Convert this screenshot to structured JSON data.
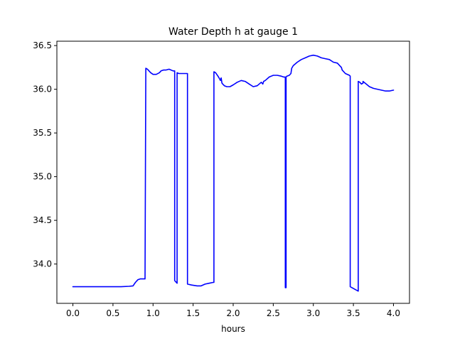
{
  "chart_data": {
    "type": "line",
    "title": "Water Depth h at gauge 1",
    "xlabel": "hours",
    "ylabel": "",
    "xlim": [
      -0.2,
      4.2
    ],
    "ylim": [
      33.55,
      36.55
    ],
    "xticks": [
      0.0,
      0.5,
      1.0,
      1.5,
      2.0,
      2.5,
      3.0,
      3.5,
      4.0
    ],
    "xtick_labels": [
      "0.0",
      "0.5",
      "1.0",
      "1.5",
      "2.0",
      "2.5",
      "3.0",
      "3.5",
      "4.0"
    ],
    "yticks": [
      34.0,
      34.5,
      35.0,
      35.5,
      36.0,
      36.5
    ],
    "ytick_labels": [
      "34.0",
      "34.5",
      "35.0",
      "35.5",
      "36.0",
      "36.5"
    ],
    "grid": false,
    "series": [
      {
        "color": "#0000ff",
        "x": [
          0.0,
          0.2,
          0.4,
          0.6,
          0.7,
          0.75,
          0.78,
          0.81,
          0.84,
          0.87,
          0.9,
          0.91,
          0.93,
          0.97,
          1.0,
          1.04,
          1.08,
          1.1,
          1.13,
          1.16,
          1.2,
          1.25,
          1.27,
          1.27,
          1.3,
          1.3,
          1.3,
          1.32,
          1.43,
          1.43,
          1.43,
          1.48,
          1.55,
          1.6,
          1.65,
          1.7,
          1.75,
          1.76,
          1.76,
          1.78,
          1.81,
          1.83,
          1.84,
          1.85,
          1.86,
          1.87,
          1.89,
          1.92,
          1.96,
          2.0,
          2.05,
          2.1,
          2.15,
          2.2,
          2.25,
          2.3,
          2.35,
          2.37,
          2.38,
          2.4,
          2.45,
          2.5,
          2.55,
          2.6,
          2.63,
          2.65,
          2.65,
          2.66,
          2.66,
          2.67,
          2.7,
          2.72,
          2.73,
          2.75,
          2.8,
          2.85,
          2.9,
          2.95,
          3.0,
          3.05,
          3.1,
          3.15,
          3.2,
          3.25,
          3.3,
          3.35,
          3.36,
          3.4,
          3.45,
          3.46,
          3.46,
          3.5,
          3.56,
          3.56,
          3.58,
          3.6,
          3.62,
          3.62,
          3.66,
          3.7,
          3.75,
          3.8,
          3.85,
          3.9,
          3.95,
          4.0
        ],
        "y": [
          33.74,
          33.74,
          33.74,
          33.74,
          33.745,
          33.75,
          33.79,
          33.82,
          33.83,
          33.83,
          33.83,
          36.24,
          36.23,
          36.19,
          36.17,
          36.17,
          36.19,
          36.21,
          36.22,
          36.22,
          36.23,
          36.21,
          36.21,
          33.81,
          33.78,
          33.78,
          36.19,
          36.18,
          36.18,
          36.18,
          33.77,
          33.76,
          33.75,
          33.75,
          33.77,
          33.78,
          33.79,
          33.79,
          36.2,
          36.19,
          36.15,
          36.12,
          36.1,
          36.13,
          36.07,
          36.06,
          36.04,
          36.03,
          36.03,
          36.05,
          36.08,
          36.1,
          36.09,
          36.06,
          36.03,
          36.04,
          36.08,
          36.06,
          36.09,
          36.1,
          36.14,
          36.16,
          36.16,
          36.15,
          36.14,
          36.14,
          33.73,
          33.73,
          36.14,
          36.15,
          36.16,
          36.18,
          36.24,
          36.27,
          36.31,
          36.34,
          36.36,
          36.38,
          36.39,
          36.38,
          36.36,
          36.35,
          36.34,
          36.31,
          36.3,
          36.25,
          36.22,
          36.18,
          36.16,
          36.15,
          33.74,
          33.72,
          33.69,
          36.09,
          36.08,
          36.06,
          36.07,
          36.09,
          36.06,
          36.03,
          36.01,
          36.0,
          35.99,
          35.98,
          35.98,
          35.99
        ]
      }
    ]
  }
}
